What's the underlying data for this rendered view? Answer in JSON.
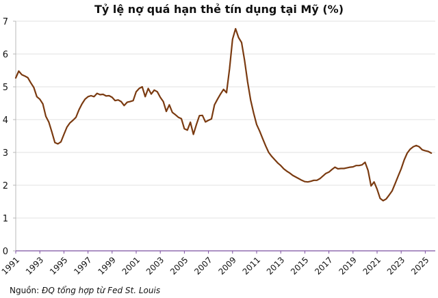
{
  "title": "Tỷ lệ nợ quá hạn thẻ tín dụng tại Mỹ (%)",
  "source": {
    "label": "Nguồn:",
    "text": "ĐQ tổng hợp từ Fed St. Louis"
  },
  "style": {
    "line_color": "#7a3a10",
    "grid_color": "#e2e2e2",
    "x_axis_color": "#7b4fa0",
    "y_axis_color": "#b8b8b8"
  },
  "chart_data": {
    "type": "line",
    "title": "Tỷ lệ nợ quá hạn thẻ tín dụng tại Mỹ (%)",
    "xlabel": "",
    "ylabel": "",
    "ylim": [
      0,
      7
    ],
    "yticks": [
      0,
      1,
      2,
      3,
      4,
      5,
      6,
      7
    ],
    "xticks": [
      "1991",
      "1993",
      "1995",
      "1997",
      "1999",
      "2001",
      "2003",
      "2005",
      "2007",
      "2009",
      "2011",
      "2013",
      "2015",
      "2017",
      "2019",
      "2021",
      "2023",
      "2025"
    ],
    "grid": true,
    "legend": null,
    "series": [
      {
        "name": "Tỷ lệ nợ quá hạn thẻ tín dụng (%)",
        "x": [
          1991.0,
          1991.25,
          1991.5,
          1991.75,
          1992.0,
          1992.25,
          1992.5,
          1992.75,
          1993.0,
          1993.25,
          1993.5,
          1993.75,
          1994.0,
          1994.25,
          1994.5,
          1994.75,
          1995.0,
          1995.25,
          1995.5,
          1995.75,
          1996.0,
          1996.25,
          1996.5,
          1996.75,
          1997.0,
          1997.25,
          1997.5,
          1997.75,
          1998.0,
          1998.25,
          1998.5,
          1998.75,
          1999.0,
          1999.25,
          1999.5,
          1999.75,
          2000.0,
          2000.25,
          2000.5,
          2000.75,
          2001.0,
          2001.25,
          2001.5,
          2001.75,
          2002.0,
          2002.25,
          2002.5,
          2002.75,
          2003.0,
          2003.25,
          2003.5,
          2003.75,
          2004.0,
          2004.25,
          2004.5,
          2004.75,
          2005.0,
          2005.25,
          2005.5,
          2005.75,
          2006.0,
          2006.25,
          2006.5,
          2006.75,
          2007.0,
          2007.25,
          2007.5,
          2007.75,
          2008.0,
          2008.25,
          2008.5,
          2008.75,
          2009.0,
          2009.25,
          2009.5,
          2009.75,
          2010.0,
          2010.25,
          2010.5,
          2010.75,
          2011.0,
          2011.25,
          2011.5,
          2011.75,
          2012.0,
          2012.25,
          2012.5,
          2012.75,
          2013.0,
          2013.25,
          2013.5,
          2013.75,
          2014.0,
          2014.25,
          2014.5,
          2014.75,
          2015.0,
          2015.25,
          2015.5,
          2015.75,
          2016.0,
          2016.25,
          2016.5,
          2016.75,
          2017.0,
          2017.25,
          2017.5,
          2017.75,
          2018.0,
          2018.25,
          2018.5,
          2018.75,
          2019.0,
          2019.25,
          2019.5,
          2019.75,
          2020.0,
          2020.25,
          2020.5,
          2020.75,
          2021.0,
          2021.25,
          2021.5,
          2021.75,
          2022.0,
          2022.25,
          2022.5,
          2022.75,
          2023.0,
          2023.25,
          2023.5,
          2023.75,
          2024.0,
          2024.25,
          2024.5,
          2024.75,
          2025.0,
          2025.25,
          2025.5
        ],
        "values": [
          5.27,
          5.48,
          5.37,
          5.33,
          5.28,
          5.12,
          4.98,
          4.7,
          4.62,
          4.48,
          4.1,
          3.92,
          3.62,
          3.3,
          3.26,
          3.32,
          3.55,
          3.77,
          3.9,
          3.98,
          4.07,
          4.3,
          4.48,
          4.62,
          4.7,
          4.73,
          4.7,
          4.8,
          4.76,
          4.77,
          4.72,
          4.73,
          4.68,
          4.58,
          4.6,
          4.55,
          4.43,
          4.53,
          4.55,
          4.58,
          4.85,
          4.95,
          5.0,
          4.7,
          4.95,
          4.78,
          4.9,
          4.85,
          4.68,
          4.55,
          4.25,
          4.45,
          4.22,
          4.15,
          4.07,
          4.03,
          3.72,
          3.68,
          3.92,
          3.55,
          3.85,
          4.12,
          4.13,
          3.93,
          3.98,
          4.02,
          4.45,
          4.62,
          4.78,
          4.92,
          4.82,
          5.55,
          6.45,
          6.77,
          6.5,
          6.35,
          5.8,
          5.15,
          4.6,
          4.2,
          3.85,
          3.65,
          3.42,
          3.2,
          3.0,
          2.88,
          2.78,
          2.68,
          2.6,
          2.5,
          2.43,
          2.37,
          2.3,
          2.25,
          2.2,
          2.15,
          2.11,
          2.1,
          2.12,
          2.15,
          2.15,
          2.2,
          2.28,
          2.36,
          2.4,
          2.48,
          2.55,
          2.5,
          2.51,
          2.51,
          2.53,
          2.55,
          2.56,
          2.6,
          2.6,
          2.62,
          2.7,
          2.45,
          1.98,
          2.1,
          1.88,
          1.6,
          1.53,
          1.58,
          1.7,
          1.83,
          2.05,
          2.28,
          2.5,
          2.77,
          2.98,
          3.1,
          3.17,
          3.21,
          3.17,
          3.08,
          3.05,
          3.03,
          2.98
        ]
      }
    ]
  }
}
